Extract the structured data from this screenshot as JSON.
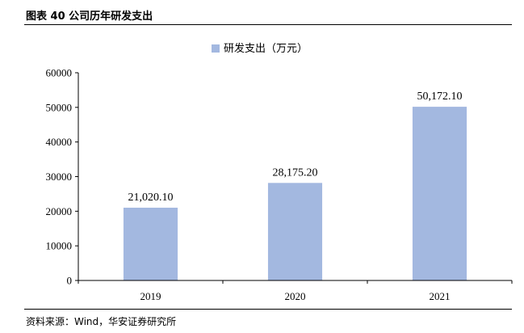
{
  "figure": {
    "title": "图表 40 公司历年研发支出",
    "source": "资料来源：Wind，华安证券研究所"
  },
  "colors": {
    "bar": "#A3B8E0",
    "axis": "#000000"
  },
  "chart_data": {
    "type": "bar",
    "categories": [
      "2019",
      "2020",
      "2021"
    ],
    "series": [
      {
        "name": "研发支出（万元）",
        "values": [
          21020.1,
          28175.2,
          50172.1
        ]
      }
    ],
    "data_labels": [
      "21,020.10",
      "28,175.20",
      "50,172.10"
    ],
    "ylim": [
      0,
      60000
    ],
    "yticks": [
      0,
      10000,
      20000,
      30000,
      40000,
      50000,
      60000
    ],
    "ytick_labels": [
      "0",
      "10000",
      "20000",
      "30000",
      "40000",
      "50000",
      "60000"
    ],
    "legend_position": "top-center",
    "grid": false
  }
}
